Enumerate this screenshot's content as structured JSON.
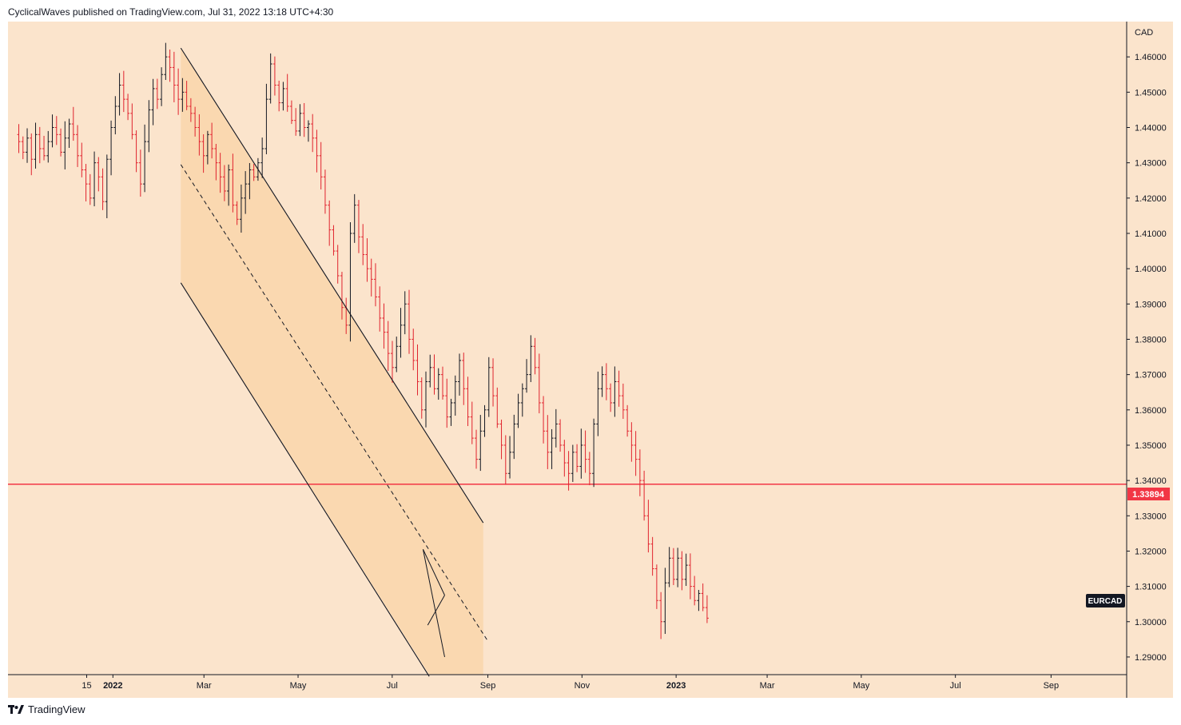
{
  "header": {
    "caption": "CyclicalWaves published on TradingView.com, Jul 31, 2022 13:18 UTC+4:30"
  },
  "footer": {
    "brand": "TradingView"
  },
  "colors": {
    "background": "#fbe4cc",
    "channel_fill": "#fad8b0",
    "up_bar": "#131722",
    "down_bar": "#e0232e",
    "horizontal_line": "#f23645",
    "axis_line": "#131722"
  },
  "chart_data": {
    "type": "ohlc",
    "symbol_label": "EURCAD",
    "currency_label": "CAD",
    "price_line_label": "1.33894",
    "price_line_value": 1.33894,
    "ylim": [
      1.285,
      1.47
    ],
    "y_ticks": [
      "1.29000",
      "1.30000",
      "1.31000",
      "1.32000",
      "1.33000",
      "1.34000",
      "1.35000",
      "1.36000",
      "1.37000",
      "1.38000",
      "1.39000",
      "1.40000",
      "1.41000",
      "1.42000",
      "1.43000",
      "1.44000",
      "1.45000",
      "1.46000"
    ],
    "x_ticks": [
      "15",
      "2022",
      "Mar",
      "May",
      "Jul",
      "Sep",
      "Nov",
      "2023",
      "Mar",
      "May",
      "Jul",
      "Sep"
    ],
    "series": [
      {
        "name": "",
        "start_date": "2021-11-01",
        "closes": [
          1.436,
          1.433,
          1.437,
          1.431,
          1.438,
          1.434,
          1.432,
          1.436,
          1.44,
          1.438,
          1.433,
          1.437,
          1.441,
          1.438,
          1.432,
          1.428,
          1.424,
          1.42,
          1.43,
          1.426,
          1.419,
          1.431,
          1.44,
          1.446,
          1.452,
          1.448,
          1.444,
          1.438,
          1.43,
          1.424,
          1.436,
          1.445,
          1.451,
          1.448,
          1.455,
          1.46,
          1.457,
          1.452,
          1.448,
          1.45,
          1.446,
          1.444,
          1.44,
          1.436,
          1.432,
          1.438,
          1.434,
          1.43,
          1.426,
          1.422,
          1.428,
          1.418,
          1.414,
          1.42,
          1.424,
          1.428,
          1.426,
          1.43,
          1.434,
          1.448,
          1.458,
          1.452,
          1.447,
          1.451,
          1.446,
          1.442,
          1.439,
          1.444,
          1.44,
          1.441,
          1.437,
          1.432,
          1.426,
          1.418,
          1.411,
          1.405,
          1.398,
          1.389,
          1.384,
          1.41,
          1.418,
          1.409,
          1.404,
          1.4,
          1.397,
          1.392,
          1.386,
          1.382,
          1.376,
          1.372,
          1.378,
          1.384,
          1.39,
          1.38,
          1.374,
          1.368,
          1.36,
          1.368,
          1.372,
          1.366,
          1.37,
          1.364,
          1.358,
          1.362,
          1.368,
          1.374,
          1.366,
          1.358,
          1.352,
          1.346,
          1.354,
          1.36,
          1.372,
          1.364,
          1.356,
          1.35,
          1.342,
          1.348,
          1.356,
          1.362,
          1.366,
          1.37,
          1.378,
          1.372,
          1.362,
          1.354,
          1.348,
          1.352,
          1.356,
          1.35,
          1.345,
          1.342,
          1.348,
          1.344,
          1.35,
          1.346,
          1.342,
          1.356,
          1.366,
          1.37,
          1.366,
          1.362,
          1.368,
          1.364,
          1.36,
          1.354,
          1.35,
          1.346,
          1.34,
          1.33,
          1.322,
          1.315,
          1.306,
          1.3,
          1.311,
          1.318,
          1.312,
          1.318,
          1.312,
          1.316,
          1.31,
          1.306,
          1.308,
          1.304,
          1.301
        ]
      }
    ],
    "channel": {
      "upper_start": [
        "2022-02-14",
        1.4625
      ],
      "upper_end": [
        "2022-08-29",
        1.328
      ],
      "lower_start": [
        "2022-02-14",
        1.396
      ],
      "lower_end": [
        "2022-07-25",
        1.2845
      ],
      "mid_start": [
        "2022-02-14",
        1.4295
      ],
      "mid_end": [
        "2022-09-01",
        1.2945
      ]
    },
    "wedge": {
      "top_start": [
        "2022-07-24",
        1.299
      ],
      "top_end": [
        "2022-08-04",
        1.3075
      ],
      "bot_start": [
        "2022-07-21",
        1.3205
      ],
      "bot_end": [
        "2022-08-04",
        1.29
      ]
    }
  }
}
